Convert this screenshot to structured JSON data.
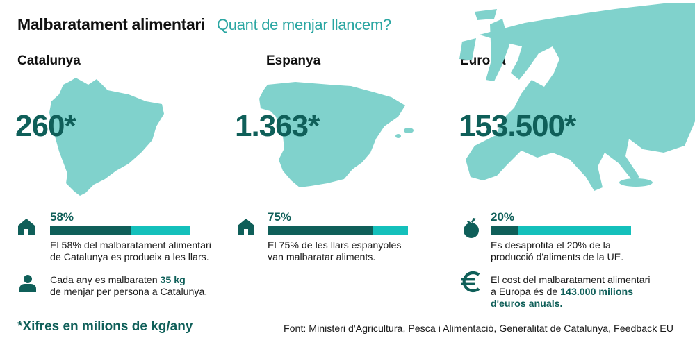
{
  "header": {
    "title": "Malbaratament alimentari",
    "subtitle": "Quant de menjar llancem?"
  },
  "columns": [
    {
      "region": "Catalunya",
      "total": "260*",
      "stat": {
        "icon": "house-icon",
        "percent_label": "58%",
        "percent": 58,
        "text_line1": "El 58% del malbaratament alimentari",
        "text_line2": "de Catalunya es produeix a les llars."
      },
      "extra": {
        "icon": "person-icon",
        "line1_prefix": "Cada any es malbaraten ",
        "line1_bold": "35 kg",
        "line2": "de menjar per persona a Catalunya."
      }
    },
    {
      "region": "Espanya",
      "total": "1.363*",
      "stat": {
        "icon": "house-icon",
        "percent_label": "75%",
        "percent": 75,
        "text_line1": "El 75% de les llars espanyoles",
        "text_line2": "van malbaratar aliments."
      }
    },
    {
      "region": "Europa",
      "total": "153.500*",
      "stat": {
        "icon": "apple-icon",
        "percent_label": "20%",
        "percent": 20,
        "text_line1": "Es desaprofita el 20% de la",
        "text_line2": "producció d'aliments de la UE."
      },
      "extra": {
        "icon": "euro-icon",
        "line1": "El cost del malbaratament alimentari",
        "line2_prefix": "a Europa és de ",
        "line2_bold": "143.000 milions",
        "line3_bold": "d'euros anuals."
      }
    }
  ],
  "footer": {
    "note": "*Xifres en milions de kg/any",
    "source": "Font: Ministeri d'Agricultura, Pesca i Alimentació, Generalitat de Catalunya, Feedback EU"
  },
  "colors": {
    "dark_teal": "#0f5f59",
    "bright_teal": "#14c0bb",
    "map_teal": "#80d2cc",
    "accent_teal": "#2aa6a2"
  }
}
